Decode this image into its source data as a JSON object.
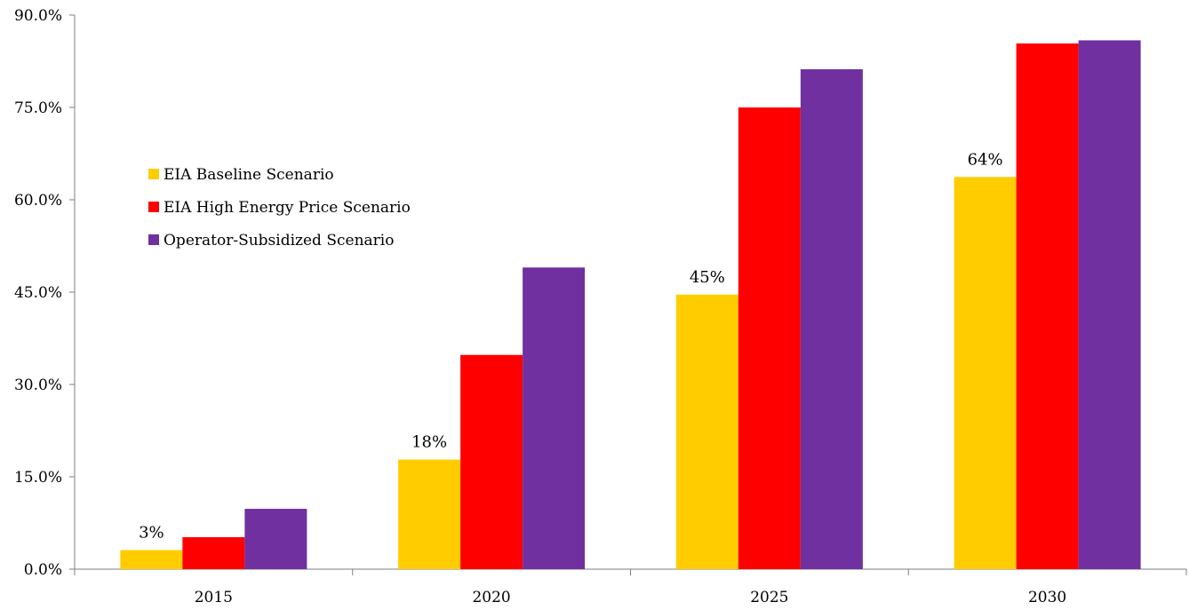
{
  "chart_data": {
    "type": "bar",
    "title": "",
    "xlabel": "",
    "ylabel": "",
    "categories": [
      "2015",
      "2020",
      "2025",
      "2030"
    ],
    "ylim": [
      0,
      90
    ],
    "yticks": [
      0,
      15,
      30,
      45,
      60,
      75,
      90
    ],
    "ytick_labels": [
      "0.0%",
      "15.0%",
      "30.0%",
      "45.0%",
      "60.0%",
      "75.0%",
      "90.0%"
    ],
    "grid": false,
    "legend_position": "upper-left",
    "series": [
      {
        "name": "EIA Baseline Scenario",
        "color": "#FFCC00",
        "values": [
          3.1,
          17.8,
          44.6,
          63.7
        ],
        "data_labels": [
          "3%",
          "18%",
          "45%",
          "64%"
        ]
      },
      {
        "name": "EIA High Energy Price Scenario",
        "color": "#FF0000",
        "values": [
          5.2,
          34.8,
          75.0,
          85.4
        ]
      },
      {
        "name": "Operator-Subsidized Scenario",
        "color": "#7030A0",
        "values": [
          9.8,
          49.0,
          81.2,
          85.9
        ]
      }
    ]
  }
}
